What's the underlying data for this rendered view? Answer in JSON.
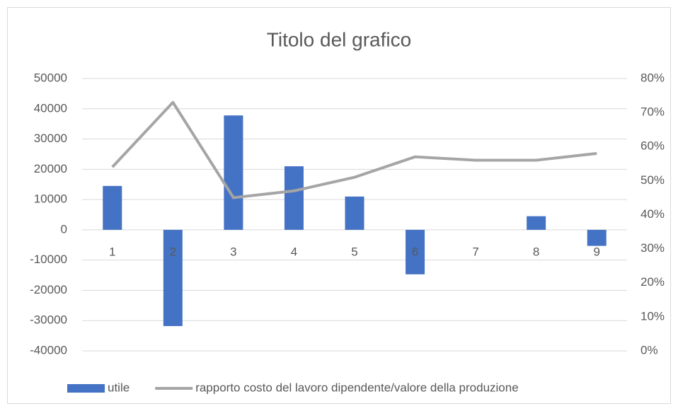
{
  "chart_data": {
    "type": "bar-line",
    "title": "Titolo del grafico",
    "categories": [
      "1",
      "2",
      "3",
      "4",
      "5",
      "6",
      "7",
      "8",
      "9"
    ],
    "series": [
      {
        "name": "utile",
        "type": "bar",
        "color": "#4472c4",
        "values": [
          14500,
          -31800,
          37800,
          21000,
          11000,
          -14700,
          0,
          4500,
          -5300
        ]
      },
      {
        "name": "rapporto costo del lavoro dipendente/valore della produzione",
        "type": "line",
        "axis": "y2",
        "color": "#a5a5a5",
        "values": [
          54,
          73,
          45,
          47,
          51,
          57,
          56,
          56,
          58
        ]
      }
    ],
    "ylim": [
      -40000,
      50000
    ],
    "yticks": [
      -40000,
      -30000,
      -20000,
      -10000,
      0,
      10000,
      20000,
      30000,
      40000,
      50000
    ],
    "y2lim": [
      0,
      80
    ],
    "y2ticks": [
      {
        "value": 0,
        "label": "0%"
      },
      {
        "value": 10,
        "label": "10%"
      },
      {
        "value": 20,
        "label": "20%"
      },
      {
        "value": 30,
        "label": "30%"
      },
      {
        "value": 40,
        "label": "40%"
      },
      {
        "value": 50,
        "label": "50%"
      },
      {
        "value": 60,
        "label": "60%"
      },
      {
        "value": 70,
        "label": "70%"
      },
      {
        "value": 80,
        "label": "80%"
      }
    ],
    "grid": true,
    "legend": "bottom"
  }
}
